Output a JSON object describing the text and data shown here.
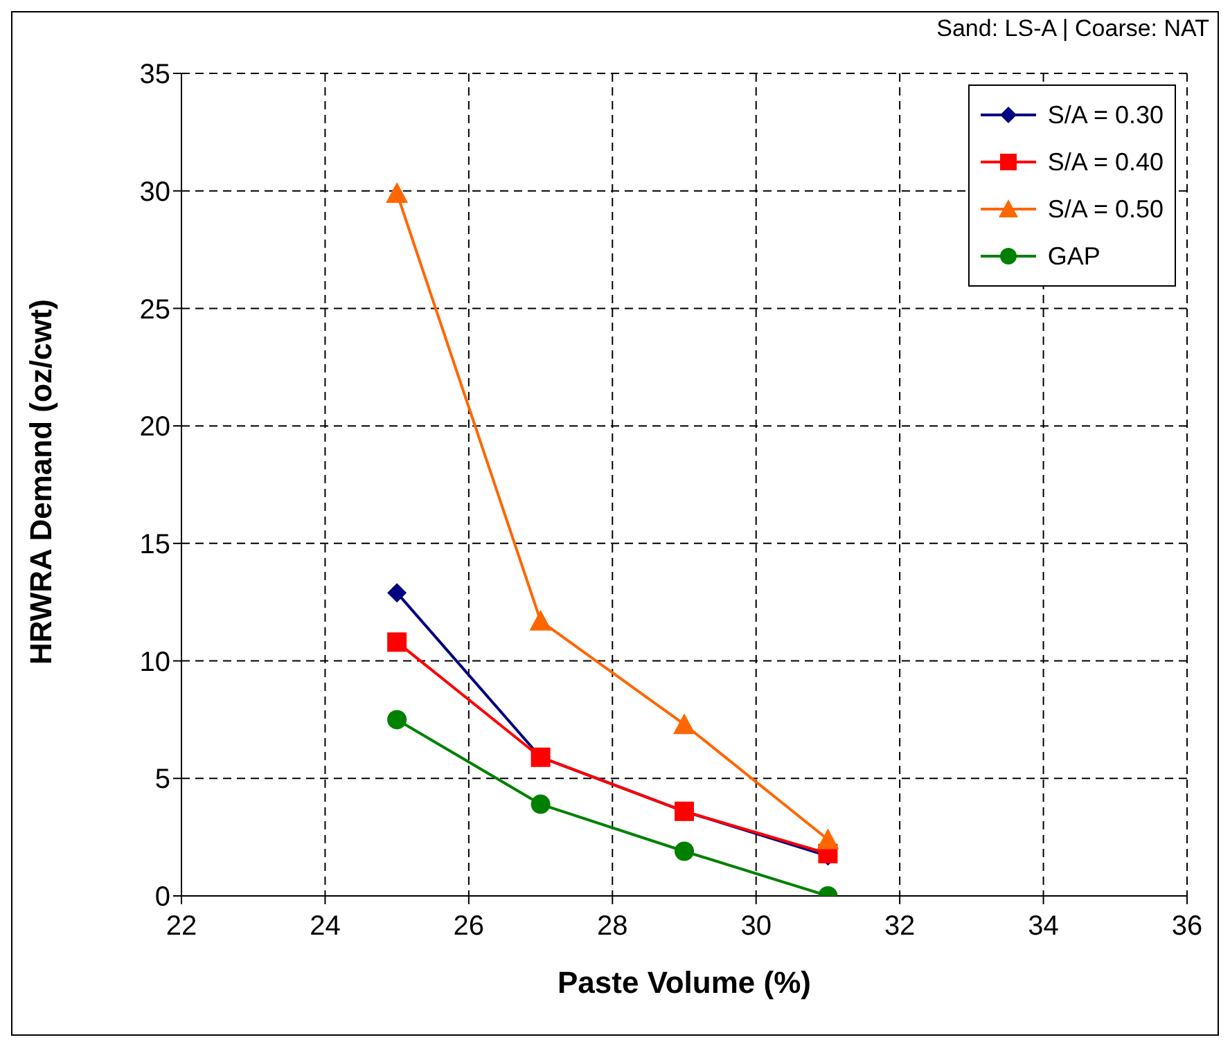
{
  "chart_data": {
    "type": "line",
    "xlabel": "Paste Volume (%)",
    "ylabel": "HRWRA Demand (oz/cwt)",
    "annotations": [
      "Sand: LS-A | Coarse: NAT"
    ],
    "x": [
      25,
      27,
      29,
      31
    ],
    "xlim": [
      22,
      36
    ],
    "xticks": [
      22,
      24,
      26,
      28,
      30,
      32,
      34,
      36
    ],
    "ylim": [
      0,
      35
    ],
    "yticks": [
      0,
      5,
      10,
      15,
      20,
      25,
      30,
      35
    ],
    "grid": true,
    "legend": "top right",
    "line_style": "solid",
    "series": [
      {
        "name": "S/A = 0.30",
        "color": "#000080",
        "marker": "diamond",
        "values": [
          12.9,
          5.9,
          3.6,
          1.7
        ]
      },
      {
        "name": "S/A = 0.40",
        "color": "#ff0000",
        "marker": "square",
        "values": [
          10.8,
          5.9,
          3.6,
          1.8
        ]
      },
      {
        "name": "S/A = 0.50",
        "color": "#ff6600",
        "marker": "triangle",
        "values": [
          29.9,
          11.7,
          7.3,
          2.4
        ]
      },
      {
        "name": "GAP",
        "color": "#008000",
        "marker": "circle",
        "values": [
          7.5,
          3.9,
          1.9,
          0.0
        ]
      }
    ]
  }
}
